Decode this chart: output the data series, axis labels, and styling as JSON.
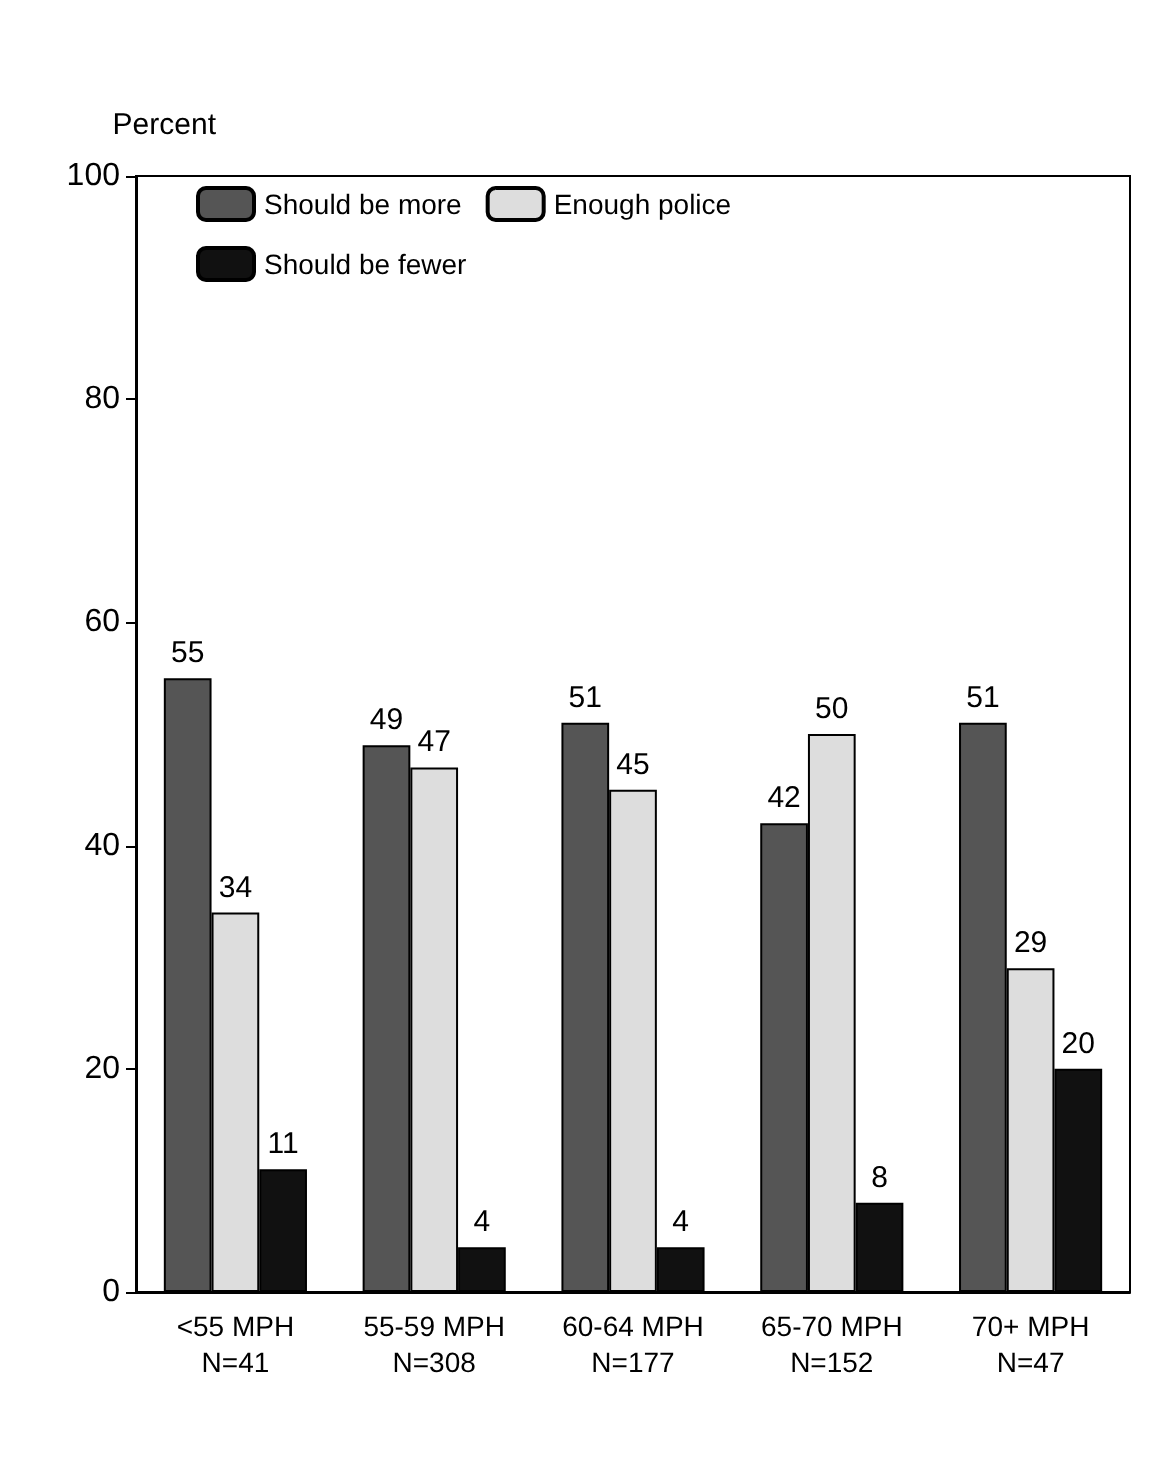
{
  "chart_data": {
    "type": "bar",
    "ylabel": "Percent",
    "categories": [
      "<55 MPH\nN=41",
      "55-59 MPH\nN=308",
      "60-64 MPH\nN=177",
      "65-70 MPH\nN=152",
      "70+ MPH\nN=47"
    ],
    "series": [
      {
        "name": "Should be more",
        "color": "#555555",
        "values": [
          55,
          49,
          51,
          42,
          51
        ]
      },
      {
        "name": "Enough police",
        "color": "#dddddd",
        "values": [
          34,
          47,
          45,
          50,
          29
        ]
      },
      {
        "name": "Should be fewer",
        "color": "#111111",
        "values": [
          11,
          4,
          4,
          8,
          20
        ]
      }
    ],
    "ylim": [
      0,
      100
    ],
    "yticks": [
      0,
      20,
      40,
      60,
      80,
      100
    ],
    "grid": false,
    "legend": "top left",
    "data_labels": true
  }
}
